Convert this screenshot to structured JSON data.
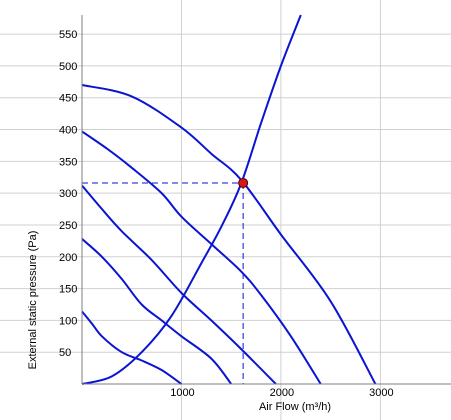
{
  "chart_data": {
    "type": "line",
    "title": "",
    "xlabel": "Air Flow (m³/h)",
    "ylabel": "External static pressure (Pa)",
    "xlim": [
      0,
      3700
    ],
    "ylim": [
      0,
      580
    ],
    "x_ticks": [
      1000,
      2000,
      3000
    ],
    "y_ticks": [
      50,
      100,
      150,
      200,
      250,
      300,
      350,
      400,
      450,
      500,
      550
    ],
    "grid": true,
    "colors": {
      "curves": "#0a14d2",
      "operating_point": "#d31919",
      "grid": "#d0d0d0",
      "axis": "#7f7f7f"
    },
    "series": [
      {
        "kind": "fan-curve",
        "points": [
          [
            0,
            470
          ],
          [
            500,
            452
          ],
          [
            1000,
            403
          ],
          [
            1300,
            362
          ],
          [
            1600,
            321
          ],
          [
            2000,
            235
          ],
          [
            2500,
            130
          ],
          [
            2950,
            0
          ]
        ]
      },
      {
        "kind": "fan-curve",
        "points": [
          [
            0,
            397
          ],
          [
            250,
            370
          ],
          [
            500,
            340
          ],
          [
            800,
            300
          ],
          [
            1000,
            263
          ],
          [
            1300,
            220
          ],
          [
            1600,
            177
          ],
          [
            1800,
            140
          ],
          [
            2100,
            75
          ],
          [
            2400,
            0
          ]
        ]
      },
      {
        "kind": "fan-curve",
        "points": [
          [
            0,
            312
          ],
          [
            200,
            275
          ],
          [
            400,
            240
          ],
          [
            700,
            195
          ],
          [
            1000,
            143
          ],
          [
            1300,
            100
          ],
          [
            1600,
            55
          ],
          [
            1950,
            0
          ]
        ]
      },
      {
        "kind": "fan-curve",
        "points": [
          [
            0,
            228
          ],
          [
            200,
            200
          ],
          [
            400,
            165
          ],
          [
            600,
            125
          ],
          [
            800,
            100
          ],
          [
            1000,
            75
          ],
          [
            1300,
            40
          ],
          [
            1500,
            0
          ]
        ]
      },
      {
        "kind": "fan-curve",
        "points": [
          [
            0,
            114
          ],
          [
            100,
            95
          ],
          [
            200,
            75
          ],
          [
            400,
            50
          ],
          [
            600,
            37
          ],
          [
            800,
            22
          ],
          [
            1000,
            0
          ]
        ]
      },
      {
        "kind": "system-curve",
        "points": [
          [
            0,
            0
          ],
          [
            300,
            12
          ],
          [
            600,
            50
          ],
          [
            900,
            107
          ],
          [
            1200,
            190
          ],
          [
            1400,
            247
          ],
          [
            1600,
            315
          ],
          [
            1800,
            410
          ],
          [
            2000,
            500
          ],
          [
            2200,
            580
          ]
        ]
      }
    ],
    "operating_point": {
      "x": 1620,
      "y": 316
    }
  }
}
